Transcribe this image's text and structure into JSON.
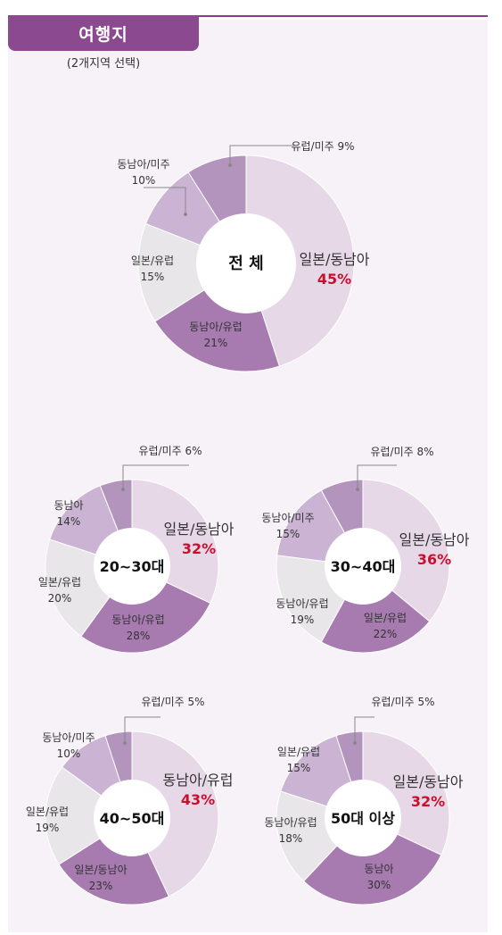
{
  "header": {
    "title": "여행지",
    "subtitle": "(2개지역 선택)"
  },
  "colors": {
    "japan_sea": "#e7d8e8",
    "sea_europe": "#a77ab0",
    "europe": "#e9e6e9",
    "sea": "#cbb4d3",
    "europe_america": "#b394bc",
    "accent": "#c8102e"
  },
  "chart_data": [
    {
      "type": "pie",
      "center": "전 체",
      "slices": [
        {
          "label": "일본/동남아",
          "value": 45,
          "pct": "45%",
          "color": "japan_sea"
        },
        {
          "label": "동남아/유럽",
          "value": 21,
          "pct": "21%",
          "color": "sea_europe"
        },
        {
          "label": "일본/유럽",
          "value": 15,
          "pct": "15%",
          "color": "europe"
        },
        {
          "label": "동남아/미주",
          "value": 10,
          "pct": "10%",
          "color": "sea"
        },
        {
          "label": "유럽/미주",
          "value": 9,
          "pct": "9%",
          "color": "europe_america"
        }
      ]
    },
    {
      "type": "pie",
      "center": "20~30대",
      "slices": [
        {
          "label": "일본/동남아",
          "value": 32,
          "pct": "32%",
          "color": "japan_sea"
        },
        {
          "label": "동남아/유럽",
          "value": 28,
          "pct": "28%",
          "color": "sea_europe"
        },
        {
          "label": "일본/유럽",
          "value": 20,
          "pct": "20%",
          "color": "europe"
        },
        {
          "label": "동남아",
          "value": 14,
          "pct": "14%",
          "color": "sea"
        },
        {
          "label": "유럽/미주",
          "value": 6,
          "pct": "6%",
          "color": "europe_america"
        }
      ]
    },
    {
      "type": "pie",
      "center": "30~40대",
      "slices": [
        {
          "label": "일본/동남아",
          "value": 36,
          "pct": "36%",
          "color": "japan_sea"
        },
        {
          "label": "일본/유럽",
          "value": 22,
          "pct": "22%",
          "color": "sea_europe"
        },
        {
          "label": "동남아/유럽",
          "value": 19,
          "pct": "19%",
          "color": "europe"
        },
        {
          "label": "동남아/미주",
          "value": 15,
          "pct": "15%",
          "color": "sea"
        },
        {
          "label": "유럽/미주",
          "value": 8,
          "pct": "8%",
          "color": "europe_america"
        }
      ]
    },
    {
      "type": "pie",
      "center": "40~50대",
      "slices": [
        {
          "label": "동남아/유럽",
          "value": 43,
          "pct": "43%",
          "color": "japan_sea"
        },
        {
          "label": "일본/동남아",
          "value": 23,
          "pct": "23%",
          "color": "sea_europe"
        },
        {
          "label": "일본/유럽",
          "value": 19,
          "pct": "19%",
          "color": "europe"
        },
        {
          "label": "동남아/미주",
          "value": 10,
          "pct": "10%",
          "color": "sea"
        },
        {
          "label": "유럽/미주",
          "value": 5,
          "pct": "5%",
          "color": "europe_america"
        }
      ]
    },
    {
      "type": "pie",
      "center": "50대 이상",
      "slices": [
        {
          "label": "일본/동남아",
          "value": 32,
          "pct": "32%",
          "color": "japan_sea"
        },
        {
          "label": "동남아",
          "value": 30,
          "pct": "30%",
          "color": "sea_europe"
        },
        {
          "label": "동남아/유럽",
          "value": 18,
          "pct": "18%",
          "color": "europe"
        },
        {
          "label": "일본/유럽",
          "value": 15,
          "pct": "15%",
          "color": "sea"
        },
        {
          "label": "유럽/미주",
          "value": 5,
          "pct": "5%",
          "color": "europe_america"
        }
      ]
    }
  ]
}
